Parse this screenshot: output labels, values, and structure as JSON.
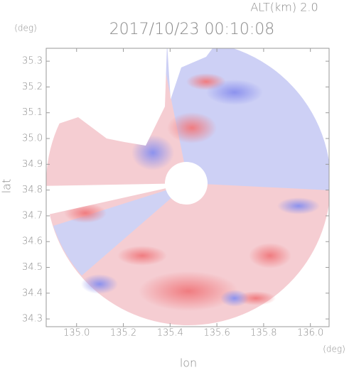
{
  "chart_data": {
    "type": "heatmap",
    "title": "2017/10/23 00:10:08",
    "subtitle": "ALT(km) 2.0",
    "xlabel": "lon",
    "ylabel": "lat",
    "xunit": "(deg)",
    "yunit": "(deg)",
    "xlim": [
      134.87,
      136.08
    ],
    "ylim": [
      34.27,
      35.35
    ],
    "xticks": [
      {
        "value": 135,
        "label": "135.0"
      },
      135.2,
      135.4,
      135.6,
      135.8,
      {
        "value": 136,
        "label": "136.0"
      }
    ],
    "yticks": [
      34.3,
      34.4,
      34.5,
      34.6,
      34.7,
      34.8,
      34.9,
      {
        "value": 35,
        "label": "35.0"
      },
      35.1,
      35.2,
      35.3
    ]
  }
}
